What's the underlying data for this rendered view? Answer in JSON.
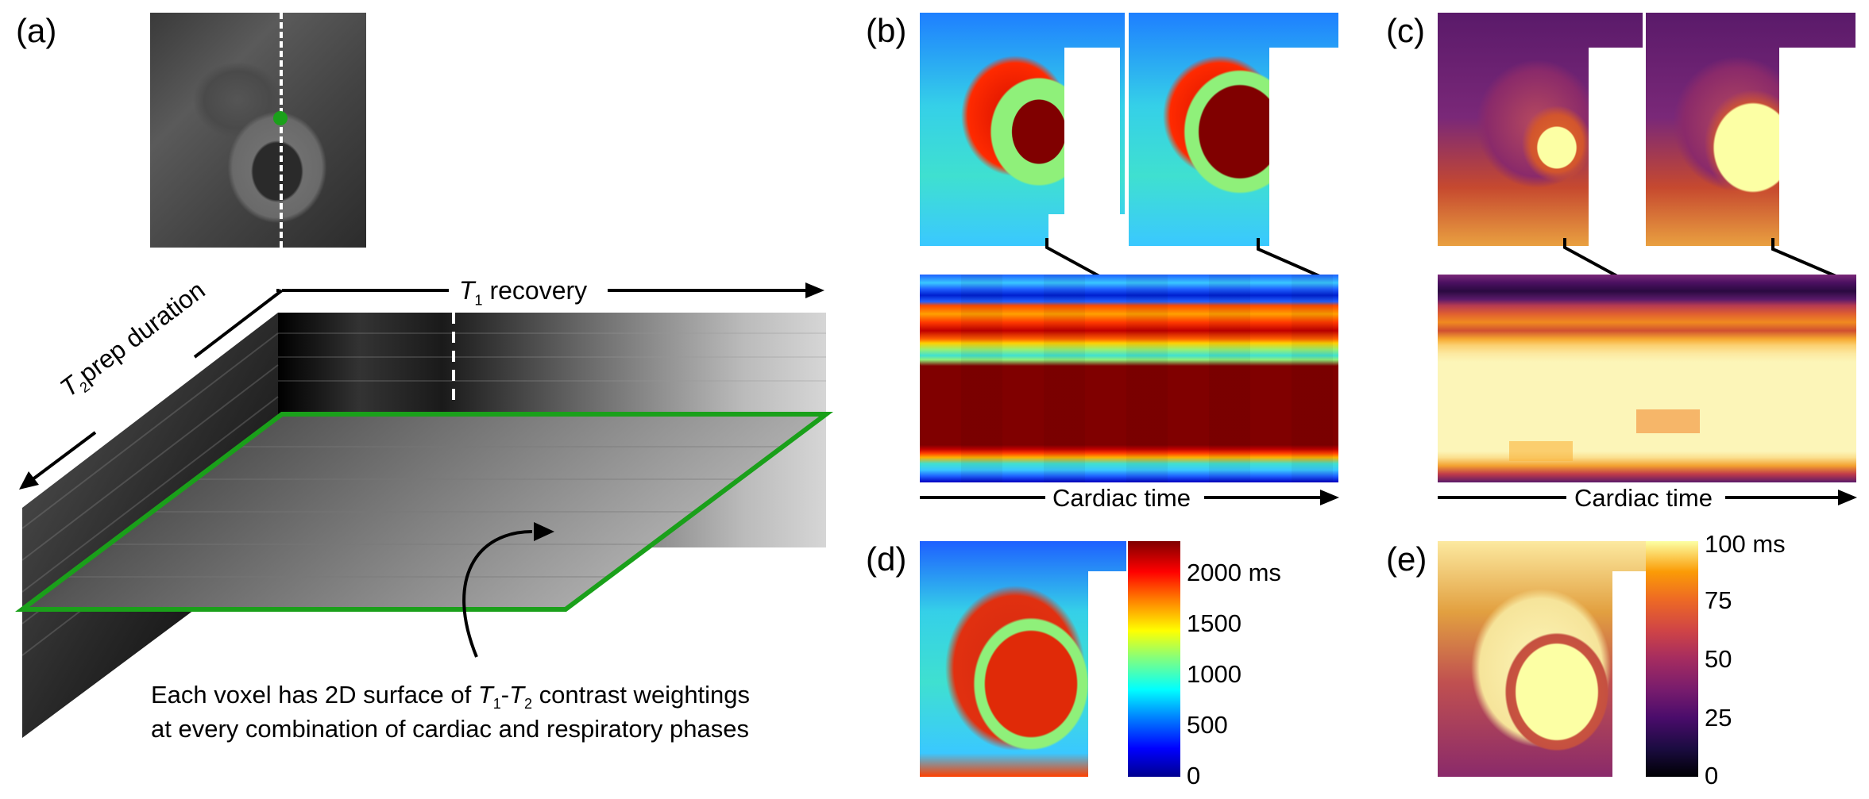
{
  "panels": {
    "a": "(a)",
    "b": "(b)",
    "c": "(c)",
    "d": "(d)",
    "e": "(e)"
  },
  "panel_a": {
    "t1_symbol": "T",
    "t1_sub": "1",
    "t1_rest": " recovery",
    "t2_symbol": "T",
    "t2_sub": "2",
    "t2_rest": "prep duration",
    "caption_line1_pre": "Each voxel has 2D surface of ",
    "caption_t1": "T",
    "caption_t1_sub": "1",
    "caption_dash": "-",
    "caption_t2": "T",
    "caption_t2_sub": "2",
    "caption_line1_post": " contrast weightings",
    "caption_line2": "at every combination of cardiac and respiratory phases"
  },
  "panel_b": {
    "axis_label": "Cardiac time"
  },
  "panel_c": {
    "axis_label": "Cardiac time"
  },
  "panel_d": {
    "colorbar_ticks": [
      "2000 ms",
      "1500",
      "1000",
      "500",
      "0"
    ]
  },
  "panel_e": {
    "colorbar_ticks": [
      "100 ms",
      "75",
      "50",
      "25",
      "0"
    ]
  },
  "colors": {
    "green_marker": "#1aa01a",
    "jet_colormap": [
      "#00008f",
      "#0000ff",
      "#00ffff",
      "#ffff00",
      "#ff0000",
      "#800000"
    ],
    "inferno_colormap": [
      "#000004",
      "#420a68",
      "#932667",
      "#dd513a",
      "#fca50a",
      "#fcffa4"
    ]
  }
}
